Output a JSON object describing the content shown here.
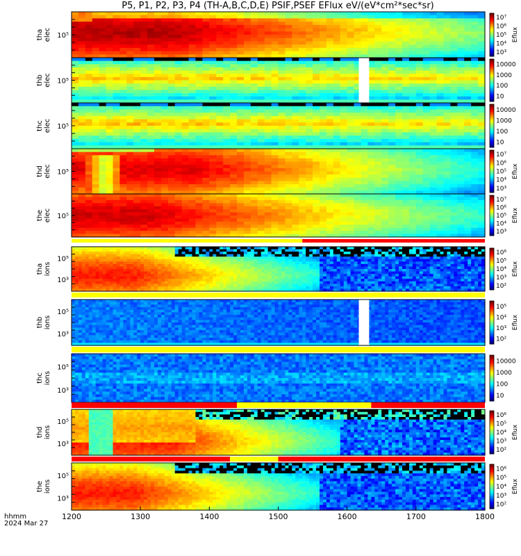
{
  "title": "P5, P1, P2, P3, P4 (TH-A,B,C,D,E) PSIF,PSEF EFlux eV/(eV*cm²*sec*sr)",
  "colors": {
    "bar_red": "#ff0000",
    "bar_yellow": "#ffff00",
    "gap": "#ffffff",
    "missing": "#000000"
  },
  "chart_data": {
    "type": "heatmap",
    "x_axis": {
      "range": [
        1200,
        1800
      ],
      "ticks": [
        "1200",
        "1300",
        "1400",
        "1500",
        "1600",
        "1700",
        "1800"
      ],
      "label_line1": "hhmm",
      "label_line2": "2024 Mar 27"
    },
    "panels": [
      {
        "ylabel": [
          "tha",
          "elec"
        ],
        "ytick": "10⁵",
        "cbar_label": "Eflux",
        "cbar_ticks": [
          "10³",
          "10⁴",
          "10⁵",
          "10⁶",
          "10⁷"
        ],
        "model": "elecA"
      },
      {
        "ylabel": [
          "thb",
          "elec"
        ],
        "ytick": "10⁵",
        "cbar_label": "",
        "cbar_ticks": [
          "10",
          "100",
          "1000",
          "10000"
        ],
        "model": "elecB",
        "gap": [
          1617,
          1632
        ]
      },
      {
        "ylabel": [
          "thc",
          "elec"
        ],
        "ytick": "10⁵",
        "cbar_label": "",
        "cbar_ticks": [
          "10",
          "100",
          "1000",
          "10000"
        ],
        "model": "elecC"
      },
      {
        "ylabel": [
          "thd",
          "elec"
        ],
        "ytick": "10⁵",
        "cbar_label": "Eflux",
        "cbar_ticks": [
          "10³",
          "10⁴",
          "10⁵",
          "10⁶",
          "10⁷"
        ],
        "model": "elecD"
      },
      {
        "ylabel": [
          "the",
          "elec"
        ],
        "ytick": "10⁵",
        "cbar_label": "Eflux",
        "cbar_ticks": [
          "10³",
          "10⁴",
          "10⁵",
          "10⁶",
          "10⁷"
        ],
        "model": "elecE"
      },
      {
        "ylabel": [
          "tha",
          "ions"
        ],
        "ytick": "10⁵",
        "ytick2": "10³",
        "cbar_label": "Eflux",
        "cbar_ticks": [
          "10²",
          "10³",
          "10⁴",
          "10⁵",
          "10⁶"
        ],
        "model": "ionA"
      },
      {
        "ylabel": [
          "thb",
          "ions"
        ],
        "ytick": "10⁵",
        "ytick2": "10³",
        "cbar_label": "Eflux",
        "cbar_ticks": [
          "10²",
          "10³",
          "10⁴",
          "10⁵"
        ],
        "model": "ionB",
        "gap": [
          1617,
          1632
        ]
      },
      {
        "ylabel": [
          "thc",
          "ions"
        ],
        "ytick": "10⁵",
        "ytick2": "10³",
        "cbar_label": "",
        "cbar_ticks": [
          "10",
          "100",
          "1000",
          "10000"
        ],
        "model": "ionC"
      },
      {
        "ylabel": [
          "thd",
          "ions"
        ],
        "ytick": "10⁵",
        "ytick2": "10³",
        "cbar_label": "Eflux",
        "cbar_ticks": [
          "10²",
          "10³",
          "10⁴",
          "10⁵",
          "10⁶"
        ],
        "model": "ionD"
      },
      {
        "ylabel": [
          "the",
          "ions"
        ],
        "ytick": "10⁵",
        "ytick2": "10³",
        "cbar_label": "Eflux",
        "cbar_ticks": [
          "10²",
          "10³",
          "10⁴",
          "10⁵",
          "10⁶"
        ],
        "model": "ionE"
      }
    ],
    "status_bars": [
      {
        "after_panel": 4,
        "segments": [
          {
            "from": 1200,
            "to": 1535,
            "color": "yellow"
          },
          {
            "from": 1535,
            "to": 1800,
            "color": "red"
          }
        ]
      },
      {
        "after_panel": 5,
        "segments": [
          {
            "from": 1200,
            "to": 1800,
            "color": "yellow"
          }
        ]
      },
      {
        "after_panel": 6,
        "segments": [
          {
            "from": 1200,
            "to": 1800,
            "color": "yellow"
          }
        ]
      },
      {
        "after_panel": 7,
        "segments": [
          {
            "from": 1200,
            "to": 1440,
            "color": "red"
          },
          {
            "from": 1440,
            "to": 1635,
            "color": "yellow"
          },
          {
            "from": 1635,
            "to": 1800,
            "color": "red"
          }
        ]
      },
      {
        "after_panel": 8,
        "segments": [
          {
            "from": 1200,
            "to": 1430,
            "color": "red"
          },
          {
            "from": 1430,
            "to": 1500,
            "color": "yellow"
          },
          {
            "from": 1500,
            "to": 1800,
            "color": "red"
          }
        ]
      }
    ]
  }
}
